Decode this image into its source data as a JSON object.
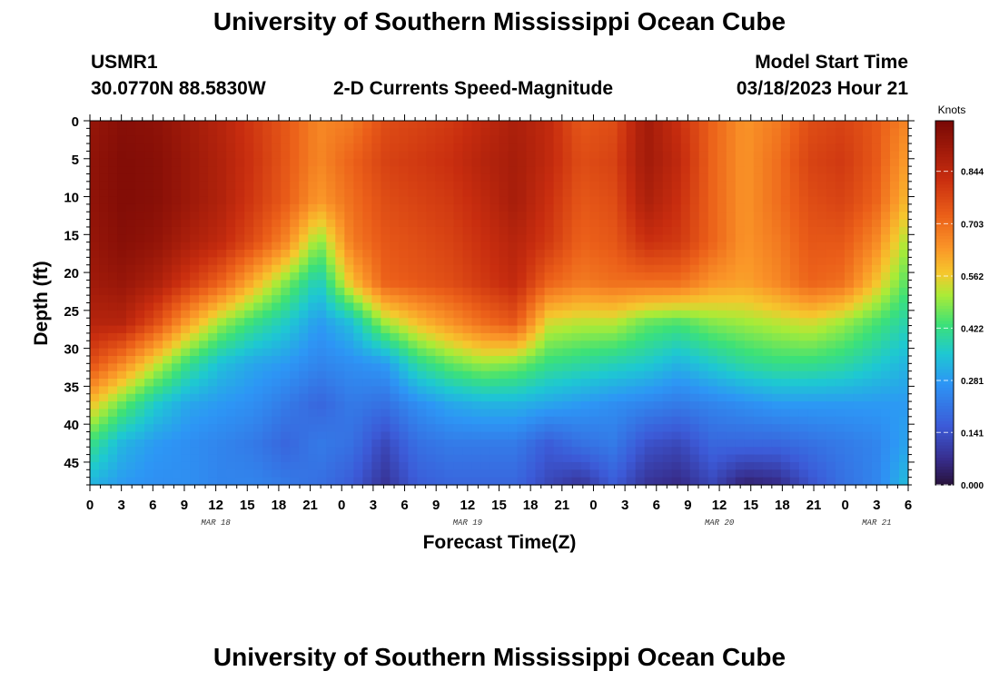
{
  "title": "University of Southern Mississippi Ocean Cube",
  "footer_title": "University of Southern Mississippi Ocean Cube",
  "station": {
    "name": "USMR1",
    "coords": "30.0770N  88.5830W"
  },
  "model": {
    "label": "Model Start Time",
    "start": "03/18/2023 Hour 21"
  },
  "chart_data": {
    "type": "heatmap",
    "title": "2-D Currents Speed-Magnitude",
    "xlabel": "Forecast Time(Z)",
    "ylabel": "Depth (ft)",
    "x_hours": [
      0,
      3,
      6,
      9,
      12,
      15,
      18,
      21,
      24,
      27,
      30,
      33,
      36,
      39,
      42,
      45,
      48,
      51,
      54,
      57,
      60,
      63,
      66,
      69,
      72,
      75,
      78
    ],
    "x_tick_labels": [
      "0",
      "3",
      "6",
      "9",
      "12",
      "15",
      "18",
      "21",
      "0",
      "3",
      "6",
      "9",
      "12",
      "15",
      "18",
      "21",
      "0",
      "3",
      "6",
      "9",
      "12",
      "15",
      "18",
      "21",
      "0",
      "3",
      "6"
    ],
    "x_day_labels": [
      {
        "hour": 12,
        "label": "MAR 18"
      },
      {
        "hour": 36,
        "label": "MAR 19"
      },
      {
        "hour": 60,
        "label": "MAR 20"
      },
      {
        "hour": 75,
        "label": "MAR 21"
      }
    ],
    "xlim": [
      0,
      78
    ],
    "y_depths": [
      0,
      5,
      10,
      15,
      20,
      25,
      30,
      35,
      40,
      45
    ],
    "ylim": [
      0,
      48
    ],
    "y_inverted": true,
    "colorbar": {
      "label": "Knots",
      "ticks": [
        0.0,
        0.141,
        0.281,
        0.422,
        0.562,
        0.703,
        0.844
      ],
      "tick_labels": [
        "0.000",
        "0.141",
        "0.281",
        "0.422",
        "0.562",
        "0.703",
        "0.844"
      ],
      "range": [
        0,
        0.98
      ]
    },
    "values": [
      [
        0.92,
        0.95,
        0.94,
        0.9,
        0.86,
        0.8,
        0.74,
        0.66,
        0.68,
        0.76,
        0.78,
        0.8,
        0.84,
        0.88,
        0.84,
        0.74,
        0.76,
        0.9,
        0.82,
        0.72,
        0.64,
        0.68,
        0.76,
        0.78,
        0.74,
        0.66
      ],
      [
        0.93,
        0.96,
        0.95,
        0.91,
        0.87,
        0.81,
        0.74,
        0.66,
        0.72,
        0.78,
        0.8,
        0.82,
        0.86,
        0.89,
        0.84,
        0.76,
        0.78,
        0.9,
        0.84,
        0.72,
        0.64,
        0.7,
        0.78,
        0.8,
        0.74,
        0.62
      ],
      [
        0.93,
        0.96,
        0.95,
        0.91,
        0.87,
        0.8,
        0.73,
        0.63,
        0.7,
        0.76,
        0.78,
        0.8,
        0.84,
        0.89,
        0.82,
        0.74,
        0.76,
        0.88,
        0.82,
        0.72,
        0.64,
        0.7,
        0.76,
        0.78,
        0.72,
        0.58
      ],
      [
        0.92,
        0.95,
        0.93,
        0.88,
        0.84,
        0.76,
        0.66,
        0.48,
        0.68,
        0.74,
        0.76,
        0.78,
        0.82,
        0.86,
        0.8,
        0.72,
        0.74,
        0.82,
        0.8,
        0.72,
        0.64,
        0.68,
        0.74,
        0.74,
        0.66,
        0.5
      ],
      [
        0.9,
        0.92,
        0.88,
        0.8,
        0.72,
        0.6,
        0.48,
        0.36,
        0.58,
        0.72,
        0.74,
        0.76,
        0.8,
        0.84,
        0.72,
        0.68,
        0.7,
        0.7,
        0.7,
        0.64,
        0.62,
        0.66,
        0.72,
        0.7,
        0.58,
        0.44
      ],
      [
        0.86,
        0.86,
        0.76,
        0.62,
        0.5,
        0.42,
        0.36,
        0.28,
        0.34,
        0.5,
        0.58,
        0.64,
        0.7,
        0.74,
        0.54,
        0.52,
        0.52,
        0.46,
        0.44,
        0.48,
        0.5,
        0.52,
        0.54,
        0.5,
        0.44,
        0.38
      ],
      [
        0.76,
        0.66,
        0.54,
        0.42,
        0.34,
        0.3,
        0.28,
        0.24,
        0.26,
        0.28,
        0.4,
        0.46,
        0.5,
        0.48,
        0.42,
        0.4,
        0.38,
        0.36,
        0.32,
        0.36,
        0.4,
        0.42,
        0.42,
        0.4,
        0.36,
        0.32
      ],
      [
        0.58,
        0.46,
        0.36,
        0.3,
        0.28,
        0.26,
        0.22,
        0.18,
        0.22,
        0.2,
        0.26,
        0.3,
        0.32,
        0.32,
        0.3,
        0.28,
        0.26,
        0.24,
        0.22,
        0.24,
        0.26,
        0.28,
        0.28,
        0.28,
        0.28,
        0.28
      ],
      [
        0.42,
        0.32,
        0.28,
        0.26,
        0.24,
        0.22,
        0.18,
        0.22,
        0.2,
        0.12,
        0.2,
        0.22,
        0.22,
        0.22,
        0.16,
        0.2,
        0.22,
        0.14,
        0.12,
        0.18,
        0.18,
        0.18,
        0.2,
        0.22,
        0.24,
        0.3
      ],
      [
        0.32,
        0.28,
        0.26,
        0.26,
        0.24,
        0.24,
        0.22,
        0.2,
        0.16,
        0.08,
        0.16,
        0.18,
        0.18,
        0.18,
        0.12,
        0.08,
        0.16,
        0.08,
        0.06,
        0.12,
        0.04,
        0.06,
        0.14,
        0.2,
        0.24,
        0.34
      ]
    ]
  }
}
